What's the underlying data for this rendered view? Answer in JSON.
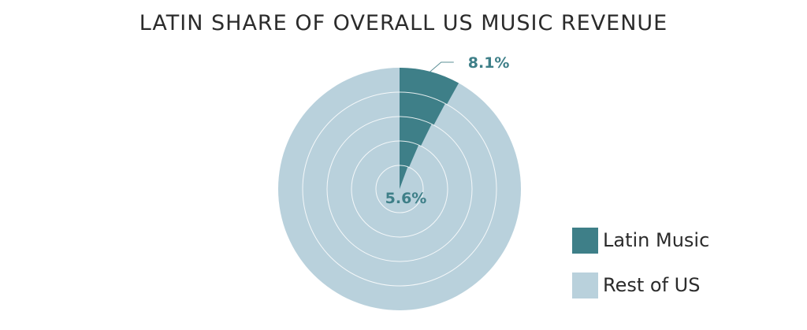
{
  "chart_data": {
    "type": "radial-pie",
    "title": "LATIN SHARE OF OVERALL US MUSIC REVENUE",
    "series": [
      {
        "name": "Latin Music",
        "color": "#3e7f88"
      },
      {
        "name": "Rest of US",
        "color": "#b9d1dc"
      }
    ],
    "rings": [
      {
        "ring": 1,
        "latin_share_percent": 5.6
      },
      {
        "ring": 2,
        "latin_share_percent": 6.5
      },
      {
        "ring": 3,
        "latin_share_percent": 7.3
      },
      {
        "ring": 4,
        "latin_share_percent": 7.8
      },
      {
        "ring": 5,
        "latin_share_percent": 8.1
      }
    ],
    "labels": {
      "inner": "5.6%",
      "outer": "8.1%"
    },
    "legend_position": "bottom-right"
  }
}
